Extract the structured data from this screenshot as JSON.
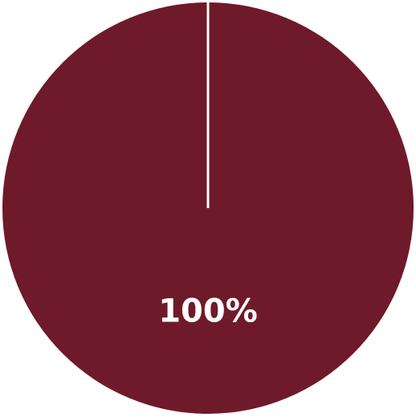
{
  "chart_data": {
    "type": "pie",
    "slices": [
      {
        "value": 100,
        "label": "100%"
      }
    ],
    "colors": [
      "#6f1a2a"
    ],
    "separator_color": "#ffffff",
    "legend": "none"
  }
}
